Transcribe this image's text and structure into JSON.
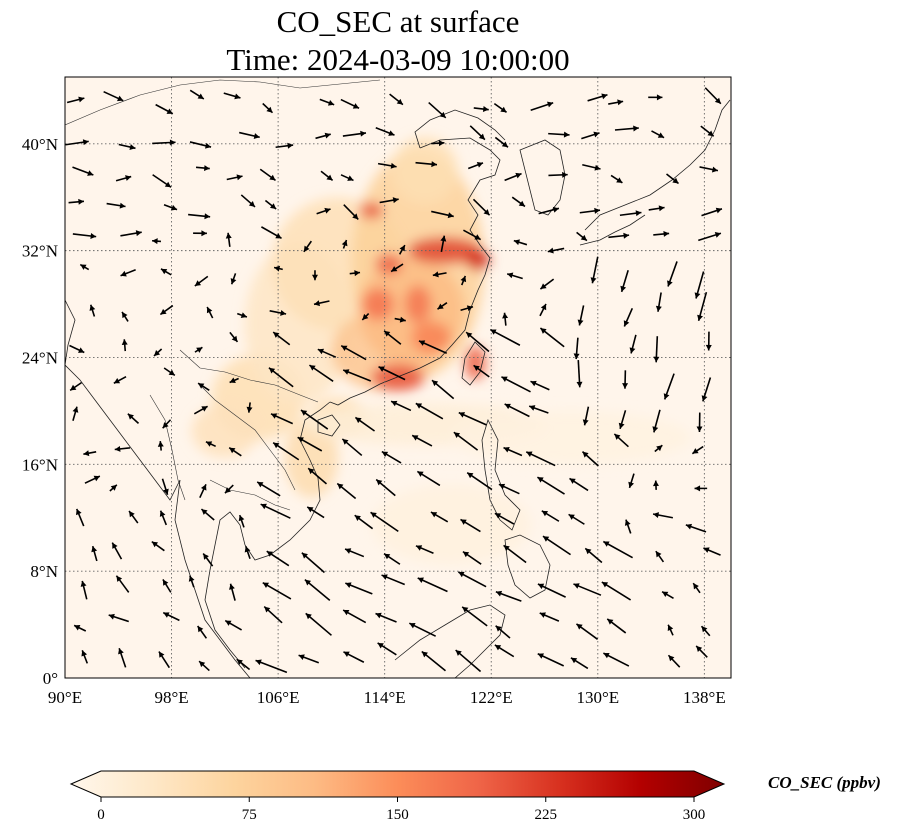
{
  "title": {
    "line1": "CO_SEC at surface",
    "line2": "Time: 2024-03-09 10:00:00"
  },
  "map": {
    "extent": {
      "lon_min": 90,
      "lon_max": 140,
      "lat_min": 0,
      "lat_max": 45
    },
    "gridlines": "on",
    "lon_ticks": [
      {
        "value": 90,
        "label": "90°E"
      },
      {
        "value": 98,
        "label": "98°E"
      },
      {
        "value": 106,
        "label": "106°E"
      },
      {
        "value": 114,
        "label": "114°E"
      },
      {
        "value": 122,
        "label": "122°E"
      },
      {
        "value": 130,
        "label": "130°E"
      },
      {
        "value": 138,
        "label": "138°E"
      }
    ],
    "lat_ticks": [
      {
        "value": 0,
        "label": "0°"
      },
      {
        "value": 8,
        "label": "8°N"
      },
      {
        "value": 16,
        "label": "16°N"
      },
      {
        "value": 24,
        "label": "24°N"
      },
      {
        "value": 32,
        "label": "32°N"
      },
      {
        "value": 40,
        "label": "40°N"
      }
    ],
    "colormap": "OrRd",
    "colors": {
      "background_field": "#fff5eb",
      "coastline": "#222222",
      "gridline": "#666666",
      "wind_arrow": "#000000"
    }
  },
  "colorbar": {
    "label": "CO_SEC (ppbv)",
    "min": 0,
    "max": 300,
    "extend": "both",
    "ticks": [
      {
        "value": 0,
        "label": "0"
      },
      {
        "value": 75,
        "label": "75"
      },
      {
        "value": 150,
        "label": "150"
      },
      {
        "value": 225,
        "label": "225"
      },
      {
        "value": 300,
        "label": "300"
      }
    ],
    "stops": [
      {
        "value": 0,
        "color": "#fff7ec"
      },
      {
        "value": 37,
        "color": "#fee8c8"
      },
      {
        "value": 75,
        "color": "#fdd49e"
      },
      {
        "value": 112,
        "color": "#fdbb84"
      },
      {
        "value": 150,
        "color": "#fc8d59"
      },
      {
        "value": 187,
        "color": "#ef6548"
      },
      {
        "value": 225,
        "color": "#d7301f"
      },
      {
        "value": 262,
        "color": "#b30000"
      },
      {
        "value": 300,
        "color": "#7f0000"
      }
    ]
  },
  "plumes": [
    {
      "lon": 104.5,
      "lat": 21.0,
      "rlon": 3.5,
      "rlat": 3.2,
      "value": 55
    },
    {
      "lon": 102.0,
      "lat": 18.5,
      "rlon": 2.5,
      "rlat": 2.0,
      "value": 48
    },
    {
      "lon": 107.5,
      "lat": 26.5,
      "rlon": 4.0,
      "rlat": 6.0,
      "value": 40
    },
    {
      "lon": 110.5,
      "lat": 31.0,
      "rlon": 5.0,
      "rlat": 5.0,
      "value": 52
    },
    {
      "lon": 116.5,
      "lat": 31.0,
      "rlon": 5.0,
      "rlat": 8.5,
      "value": 80
    },
    {
      "lon": 117.0,
      "lat": 38.0,
      "rlon": 2.5,
      "rlat": 2.5,
      "value": 55
    },
    {
      "lon": 114.0,
      "lat": 24.5,
      "rlon": 4.0,
      "rlat": 3.0,
      "value": 95
    },
    {
      "lon": 116.0,
      "lat": 27.5,
      "rlon": 4.0,
      "rlat": 4.0,
      "value": 110
    },
    {
      "lon": 115.0,
      "lat": 22.5,
      "rlon": 2.0,
      "rlat": 1.0,
      "value": 200
    },
    {
      "lon": 113.5,
      "lat": 28.0,
      "rlon": 1.2,
      "rlat": 1.2,
      "value": 175
    },
    {
      "lon": 116.5,
      "lat": 28.0,
      "rlon": 1.0,
      "rlat": 1.4,
      "value": 170
    },
    {
      "lon": 114.3,
      "lat": 31.0,
      "rlon": 1.0,
      "rlat": 0.8,
      "value": 190
    },
    {
      "lon": 118.5,
      "lat": 32.0,
      "rlon": 2.8,
      "rlat": 1.0,
      "value": 210
    },
    {
      "lon": 121.0,
      "lat": 31.3,
      "rlon": 0.9,
      "rlat": 0.8,
      "value": 230
    },
    {
      "lon": 113.0,
      "lat": 35.0,
      "rlon": 0.9,
      "rlat": 0.6,
      "value": 200
    },
    {
      "lon": 117.5,
      "lat": 25.5,
      "rlon": 1.5,
      "rlat": 1.2,
      "value": 160
    },
    {
      "lon": 120.8,
      "lat": 23.6,
      "rlon": 0.8,
      "rlat": 1.3,
      "value": 190
    },
    {
      "lon": 108.5,
      "lat": 16.5,
      "rlon": 2.0,
      "rlat": 3.0,
      "value": 60
    },
    {
      "lon": 110.5,
      "lat": 19.5,
      "rlon": 2.2,
      "rlat": 1.5,
      "value": 55
    },
    {
      "lon": 117.0,
      "lat": 19.0,
      "rlon": 9.0,
      "rlat": 1.6,
      "value": 22
    },
    {
      "lon": 128.0,
      "lat": 18.0,
      "rlon": 9.0,
      "rlat": 2.0,
      "value": 12
    },
    {
      "lon": 119.0,
      "lat": 11.5,
      "rlon": 6.0,
      "rlat": 3.0,
      "value": 14
    }
  ]
}
